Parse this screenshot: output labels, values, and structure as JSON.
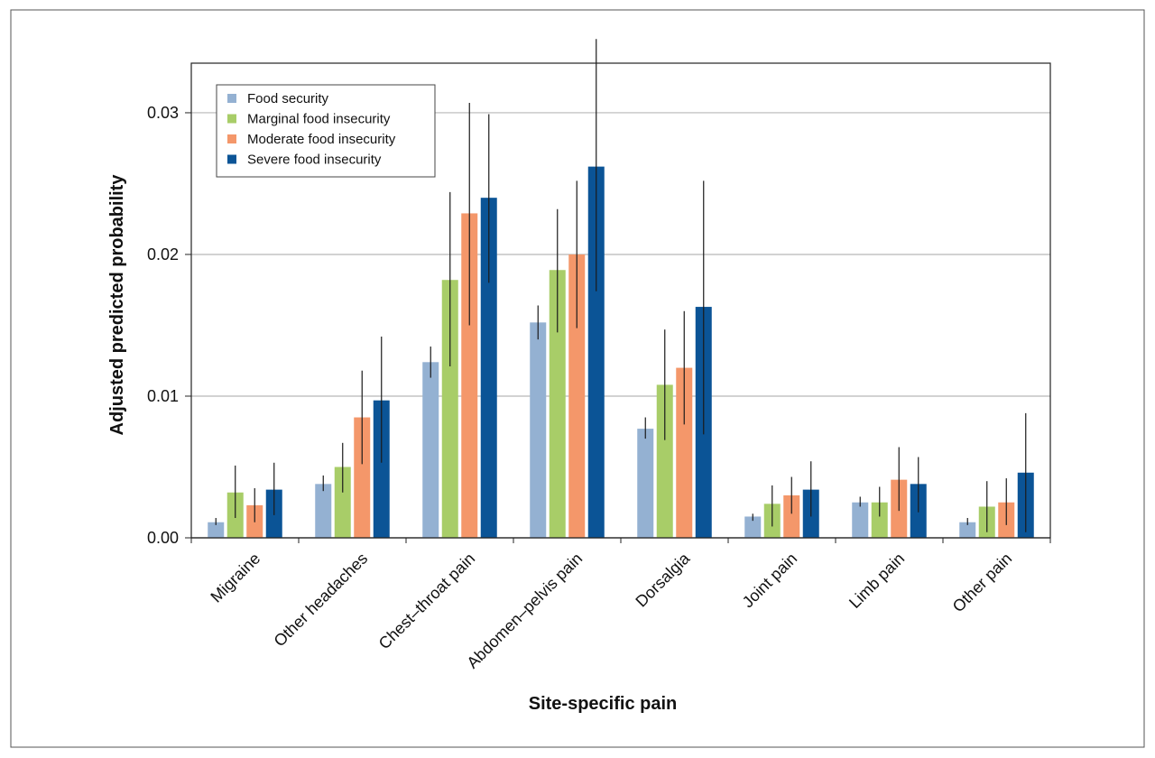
{
  "chart_data": {
    "type": "bar",
    "title": "",
    "xlabel": "Site-specific pain",
    "ylabel": "Adjusted predicted probability",
    "ylim": [
      0,
      0.0335
    ],
    "yticks": [
      0,
      0.01,
      0.02,
      0.03
    ],
    "ytick_labels": [
      "0.00",
      "0.01",
      "0.02",
      "0.03"
    ],
    "grid": true,
    "legend_position": "top-left",
    "categories": [
      "Migraine",
      "Other headaches",
      "Chest–throat pain",
      "Abdomen–pelvis pain",
      "Dorsalgia",
      "Joint pain",
      "Limb pain",
      "Other pain"
    ],
    "series": [
      {
        "name": "Food security",
        "color": "#94b1d2",
        "values": [
          0.0011,
          0.0038,
          0.0124,
          0.0152,
          0.0077,
          0.0015,
          0.0025,
          0.0011
        ],
        "ci_low": [
          0.0009,
          0.0033,
          0.0113,
          0.014,
          0.007,
          0.0012,
          0.0022,
          0.0009
        ],
        "ci_high": [
          0.0014,
          0.0044,
          0.0135,
          0.0164,
          0.0085,
          0.0017,
          0.0029,
          0.0014
        ]
      },
      {
        "name": "Marginal food insecurity",
        "color": "#a8cd68",
        "values": [
          0.0032,
          0.005,
          0.0182,
          0.0189,
          0.0108,
          0.0024,
          0.0025,
          0.0022
        ],
        "ci_low": [
          0.0014,
          0.0032,
          0.0121,
          0.0145,
          0.0069,
          0.0008,
          0.0015,
          0.0004
        ],
        "ci_high": [
          0.0051,
          0.0067,
          0.0244,
          0.0232,
          0.0147,
          0.0037,
          0.0036,
          0.004
        ]
      },
      {
        "name": "Moderate food insecurity",
        "color": "#f4976a",
        "values": [
          0.0023,
          0.0085,
          0.0229,
          0.02,
          0.012,
          0.003,
          0.0041,
          0.0025
        ],
        "ci_low": [
          0.0011,
          0.0052,
          0.015,
          0.0148,
          0.008,
          0.0017,
          0.0019,
          0.0009
        ],
        "ci_high": [
          0.0035,
          0.0118,
          0.0307,
          0.0252,
          0.016,
          0.0043,
          0.0064,
          0.0042
        ]
      },
      {
        "name": "Severe food insecurity",
        "color": "#0b5496",
        "values": [
          0.0034,
          0.0097,
          0.024,
          0.0262,
          0.0163,
          0.0034,
          0.0038,
          0.0046
        ],
        "ci_low": [
          0.0016,
          0.0053,
          0.018,
          0.0174,
          0.0073,
          0.0015,
          0.0018,
          0.0004
        ],
        "ci_high": [
          0.0053,
          0.0142,
          0.0299,
          0.0352,
          0.0252,
          0.0054,
          0.0057,
          0.0088
        ]
      }
    ]
  }
}
